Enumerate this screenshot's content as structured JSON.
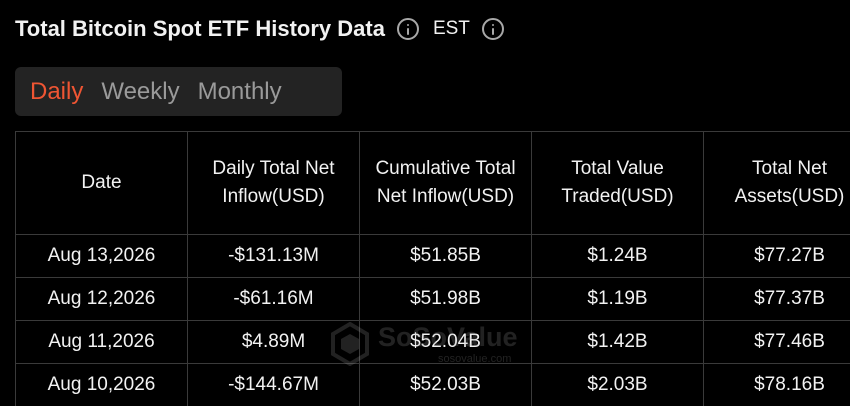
{
  "header": {
    "title": "Total Bitcoin Spot ETF History Data",
    "timezone": "EST"
  },
  "tabs": [
    {
      "label": "Daily",
      "active": true
    },
    {
      "label": "Weekly",
      "active": false
    },
    {
      "label": "Monthly",
      "active": false
    }
  ],
  "table": {
    "columns": [
      "Date",
      "Daily Total Net Inflow(USD)",
      "Cumulative Total Net Inflow(USD)",
      "Total Value Traded(USD)",
      "Total Net Assets(USD)"
    ],
    "rows": [
      {
        "date": "Aug 13,2026",
        "daily_net_inflow": "-$131.13M",
        "cumulative_net_inflow": "$51.85B",
        "value_traded": "$1.24B",
        "net_assets": "$77.27B"
      },
      {
        "date": "Aug 12,2026",
        "daily_net_inflow": "-$61.16M",
        "cumulative_net_inflow": "$51.98B",
        "value_traded": "$1.19B",
        "net_assets": "$77.37B"
      },
      {
        "date": "Aug 11,2026",
        "daily_net_inflow": "$4.89M",
        "cumulative_net_inflow": "$52.04B",
        "value_traded": "$1.42B",
        "net_assets": "$77.46B"
      },
      {
        "date": "Aug 10,2026",
        "daily_net_inflow": "-$144.67M",
        "cumulative_net_inflow": "$52.03B",
        "value_traded": "$2.03B",
        "net_assets": "$78.16B"
      }
    ]
  },
  "watermark": {
    "brand": "SoSoValue",
    "url": "sosovalue.com"
  },
  "colors": {
    "background": "#000000",
    "tab_active": "#ef5533",
    "tab_inactive": "#9a9a9a",
    "negative": "#f03e3e",
    "positive": "#37c35a",
    "grid_line": "#3a3a3a"
  },
  "icons": {
    "title_info": "info-icon",
    "timezone_info": "info-icon",
    "watermark_logo": "sosovalue-logo-icon"
  }
}
